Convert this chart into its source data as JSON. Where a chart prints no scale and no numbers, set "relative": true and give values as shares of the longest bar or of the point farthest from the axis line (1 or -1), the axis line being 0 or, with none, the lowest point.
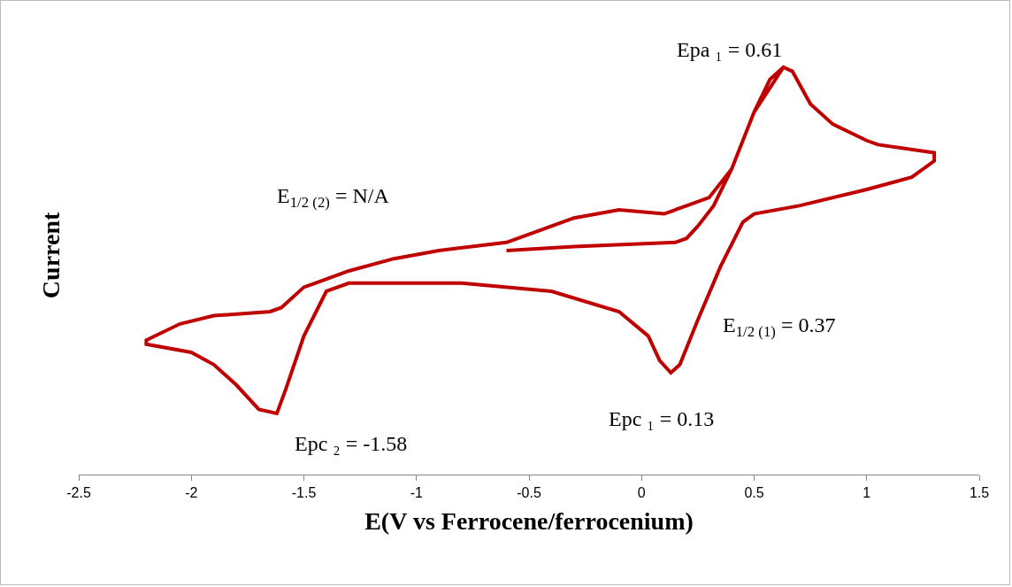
{
  "chart_data": {
    "type": "line",
    "xlabel": "E(V vs Ferrocene/ferrocenium)",
    "ylabel": "Current",
    "relative": true,
    "xlim": [
      -2.5,
      1.5
    ],
    "xticks": [
      -2.5,
      -2,
      -1.5,
      -1,
      -0.5,
      0,
      0.5,
      1,
      1.5
    ],
    "grid": false,
    "marker": "none",
    "line_style": "solid",
    "annotations": [
      "Epa ₁ = 0.61",
      "E$_{1/2 (2)}$ = N/A",
      "E$_{1/2 (1)}$ = 0.37",
      "Epc ₁ = 0.13",
      "Epc ₂ = -1.58"
    ],
    "series": [
      {
        "color": "#c00000",
        "x": [
          -0.6,
          -0.3,
          0.15,
          0.2,
          0.25,
          0.32,
          0.4,
          0.5,
          0.57,
          0.63,
          0.67,
          0.75,
          0.85,
          1.0,
          1.05,
          1.3,
          1.3,
          1.2,
          1.0,
          0.7,
          0.5,
          0.45,
          0.35,
          0.25,
          0.17,
          0.13,
          0.08,
          0.03,
          -0.1,
          -0.4,
          -0.8,
          -1.3,
          -1.4,
          -1.5,
          -1.58,
          -1.62,
          -1.7,
          -1.8,
          -1.9,
          -2.0,
          -2.2,
          -2.2,
          -2.05,
          -1.9,
          -1.65,
          -1.6,
          -1.5,
          -1.45,
          -1.3,
          -1.1,
          -0.9,
          -0.6,
          -0.5,
          -0.3,
          -0.1,
          0.1,
          0.2,
          0.3,
          0.4,
          0.5,
          0.63
        ],
        "values": [
          0.55,
          0.56,
          0.57,
          0.58,
          0.61,
          0.66,
          0.75,
          0.89,
          0.97,
          1,
          0.99,
          0.91,
          0.86,
          0.82,
          0.81,
          0.79,
          0.77,
          0.73,
          0.7,
          0.66,
          0.64,
          0.62,
          0.51,
          0.38,
          0.27,
          0.25,
          0.28,
          0.34,
          0.4,
          0.45,
          0.47,
          0.47,
          0.45,
          0.34,
          0.21,
          0.15,
          0.16,
          0.22,
          0.27,
          0.3,
          0.32,
          0.33,
          0.37,
          0.39,
          0.4,
          0.41,
          0.46,
          0.47,
          0.5,
          0.53,
          0.55,
          0.57,
          0.59,
          0.63,
          0.65,
          0.64,
          0.66,
          0.68,
          0.75,
          0.89,
          1
        ]
      }
    ]
  }
}
